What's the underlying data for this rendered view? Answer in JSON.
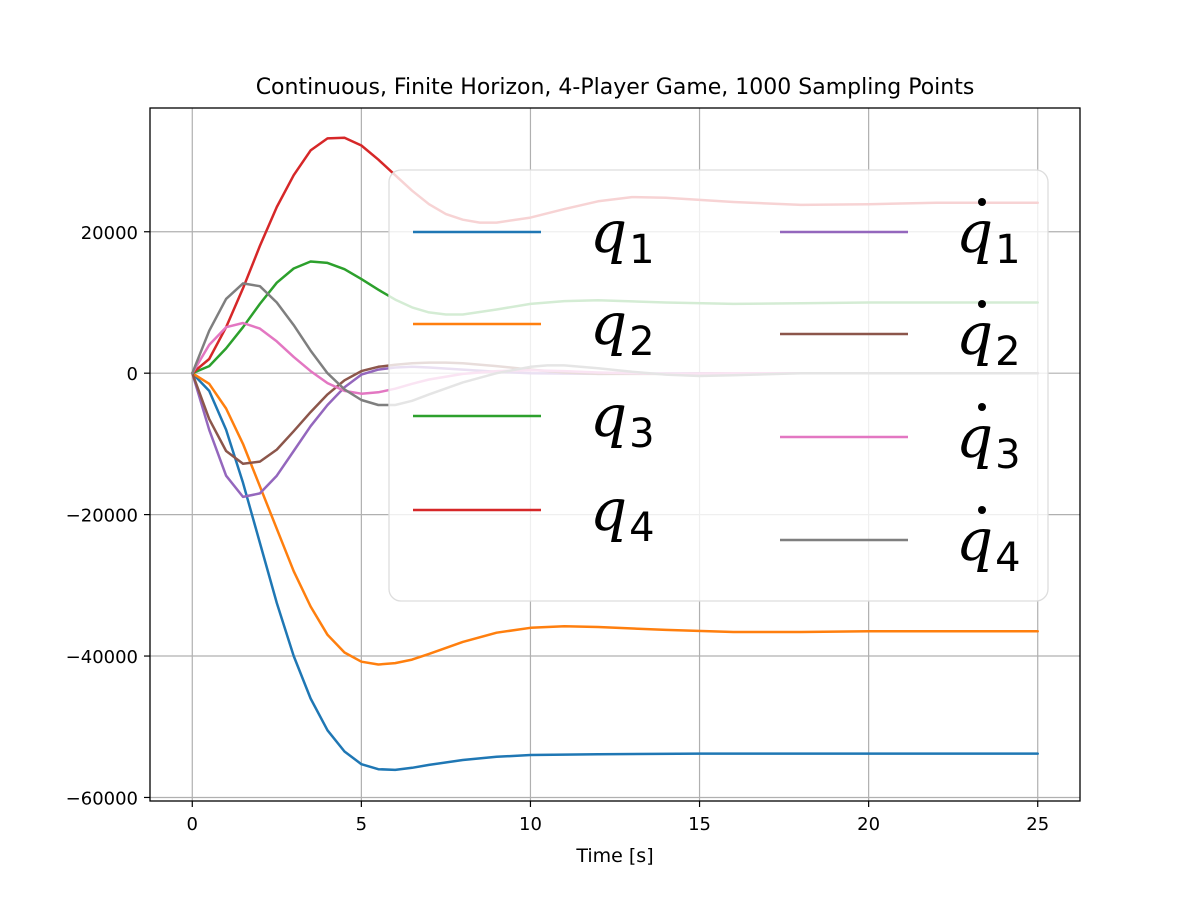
{
  "chart_data": {
    "type": "line",
    "title": "Continuous, Finite Horizon, 4-Player Game, 1000 Sampling Points",
    "xlabel": "Time [s]",
    "ylabel": "",
    "xlim": [
      -1.25,
      26.25
    ],
    "ylim": [
      -60500,
      37500
    ],
    "xticks": [
      0,
      5,
      10,
      15,
      20,
      25
    ],
    "yticks": [
      -60000,
      -40000,
      -20000,
      0,
      20000
    ],
    "xtick_labels": [
      "0",
      "5",
      "10",
      "15",
      "20",
      "25"
    ],
    "ytick_labels": [
      "−60000",
      "−40000",
      "−20000",
      "0",
      "20000"
    ],
    "grid": true,
    "legend": {
      "placement": "upper-right",
      "columns": 2
    },
    "series": [
      {
        "name": "q1",
        "color": "#1f77b4",
        "x": [
          0,
          0.5,
          1,
          1.5,
          2,
          2.5,
          3,
          3.5,
          4,
          4.5,
          5,
          5.5,
          6,
          6.5,
          7,
          8,
          9,
          10,
          12,
          15,
          18,
          20,
          22,
          25
        ],
        "y": [
          0,
          -2500,
          -8000,
          -15500,
          -24000,
          -32500,
          -40000,
          -46000,
          -50500,
          -53500,
          -55300,
          -56000,
          -56100,
          -55800,
          -55400,
          -54700,
          -54250,
          -54000,
          -53900,
          -53800,
          -53800,
          -53800,
          -53800,
          -53800
        ]
      },
      {
        "name": "q2",
        "color": "#ff7f0e",
        "x": [
          0,
          0.5,
          1,
          1.5,
          2,
          2.5,
          3,
          3.5,
          4,
          4.5,
          5,
          5.5,
          6,
          6.5,
          7,
          8,
          9,
          10,
          11,
          12,
          14,
          16,
          18,
          20,
          25
        ],
        "y": [
          0,
          -1500,
          -5000,
          -10000,
          -16000,
          -22000,
          -28000,
          -33000,
          -37000,
          -39500,
          -40800,
          -41200,
          -41000,
          -40500,
          -39700,
          -38000,
          -36700,
          -36000,
          -35800,
          -35900,
          -36300,
          -36600,
          -36600,
          -36500,
          -36500
        ]
      },
      {
        "name": "q3",
        "color": "#2ca02c",
        "x": [
          0,
          0.5,
          1,
          1.5,
          2,
          2.5,
          3,
          3.5,
          4,
          4.5,
          5,
          5.5,
          6,
          6.5,
          7,
          7.5,
          8,
          9,
          10,
          11,
          12,
          14,
          16,
          18,
          20,
          25
        ],
        "y": [
          0,
          1000,
          3500,
          6500,
          9800,
          12800,
          14800,
          15800,
          15600,
          14700,
          13300,
          11800,
          10400,
          9300,
          8600,
          8300,
          8300,
          9000,
          9800,
          10200,
          10300,
          10000,
          9800,
          9900,
          10000,
          10000
        ]
      },
      {
        "name": "q4",
        "color": "#d62728",
        "x": [
          0,
          0.5,
          1,
          1.5,
          2,
          2.5,
          3,
          3.5,
          4,
          4.5,
          5,
          5.5,
          6,
          6.5,
          7,
          7.5,
          8,
          8.5,
          9,
          10,
          11,
          12,
          13,
          14,
          16,
          18,
          20,
          22,
          25
        ],
        "y": [
          0,
          2000,
          6500,
          12000,
          18000,
          23500,
          28000,
          31500,
          33200,
          33300,
          32200,
          30200,
          28000,
          25800,
          23900,
          22500,
          21700,
          21300,
          21300,
          22000,
          23200,
          24300,
          24900,
          24800,
          24200,
          23800,
          23900,
          24100,
          24100
        ]
      },
      {
        "name": "q̇1",
        "color": "#9467bd",
        "x": [
          0,
          0.5,
          1,
          1.5,
          2,
          2.5,
          3,
          3.5,
          4,
          4.5,
          5,
          5.5,
          6,
          6.5,
          7,
          8,
          9,
          10,
          12,
          15,
          20,
          25
        ],
        "y": [
          0,
          -8000,
          -14500,
          -17500,
          -17000,
          -14500,
          -11000,
          -7500,
          -4500,
          -2000,
          -200,
          500,
          800,
          900,
          800,
          500,
          200,
          0,
          -100,
          0,
          0,
          0
        ]
      },
      {
        "name": "q̇2",
        "color": "#8c564b",
        "x": [
          0,
          0.5,
          1,
          1.5,
          2,
          2.5,
          3,
          3.5,
          4,
          4.5,
          5,
          5.5,
          6,
          6.5,
          7,
          7.5,
          8,
          9,
          10,
          11,
          12,
          14,
          16,
          20,
          25
        ],
        "y": [
          0,
          -6500,
          -11000,
          -12800,
          -12500,
          -10800,
          -8200,
          -5500,
          -3000,
          -1000,
          300,
          900,
          1200,
          1400,
          1500,
          1500,
          1400,
          1000,
          500,
          100,
          -100,
          -100,
          0,
          0,
          0
        ]
      },
      {
        "name": "q̇3",
        "color": "#e377c2",
        "x": [
          0,
          0.5,
          1,
          1.5,
          2,
          2.5,
          3,
          3.5,
          4,
          4.5,
          5,
          5.5,
          6,
          6.5,
          7,
          8,
          9,
          10,
          11,
          12,
          14,
          16,
          20,
          25
        ],
        "y": [
          0,
          4000,
          6500,
          7100,
          6300,
          4500,
          2300,
          300,
          -1400,
          -2500,
          -2900,
          -2700,
          -2200,
          -1500,
          -900,
          -100,
          300,
          400,
          300,
          100,
          -100,
          0,
          0,
          0
        ]
      },
      {
        "name": "q̇4",
        "color": "#7f7f7f",
        "x": [
          0,
          0.5,
          1,
          1.5,
          2,
          2.5,
          3,
          3.5,
          4,
          4.5,
          5,
          5.5,
          6,
          6.5,
          7,
          8,
          9,
          10,
          10.5,
          11,
          12,
          13,
          14,
          15,
          16,
          18,
          20,
          25
        ],
        "y": [
          0,
          6000,
          10500,
          12700,
          12300,
          10000,
          6800,
          3200,
          0,
          -2300,
          -3800,
          -4500,
          -4500,
          -3900,
          -3000,
          -1300,
          0,
          900,
          1100,
          1100,
          700,
          200,
          -200,
          -400,
          -300,
          0,
          0,
          0
        ]
      }
    ],
    "legend_entries": [
      {
        "base": "q",
        "dot": false,
        "sub": "1",
        "color": "#1f77b4"
      },
      {
        "base": "q",
        "dot": false,
        "sub": "2",
        "color": "#ff7f0e"
      },
      {
        "base": "q",
        "dot": false,
        "sub": "3",
        "color": "#2ca02c"
      },
      {
        "base": "q",
        "dot": false,
        "sub": "4",
        "color": "#d62728"
      },
      {
        "base": "q",
        "dot": true,
        "sub": "1",
        "color": "#9467bd"
      },
      {
        "base": "q",
        "dot": true,
        "sub": "2",
        "color": "#8c564b"
      },
      {
        "base": "q",
        "dot": true,
        "sub": "3",
        "color": "#e377c2"
      },
      {
        "base": "q",
        "dot": true,
        "sub": "4",
        "color": "#7f7f7f"
      }
    ]
  }
}
